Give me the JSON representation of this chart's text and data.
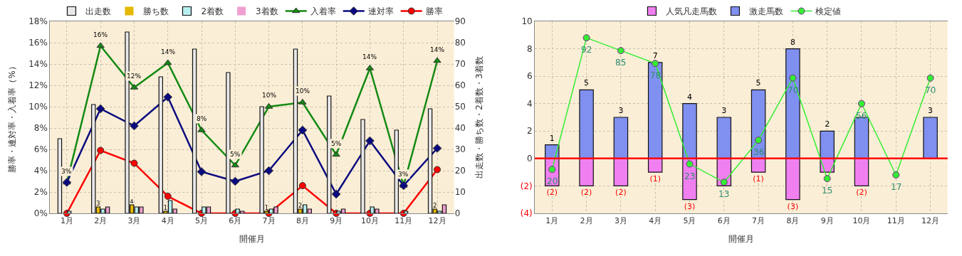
{
  "chart_data": [
    {
      "type": "bar",
      "xlabel": "開催月",
      "ylabel": "勝率・連対率・入着率（%）",
      "y2label": "出走数・勝ち数・2着数・3着数",
      "categories": [
        "1月",
        "2月",
        "3月",
        "4月",
        "5月",
        "6月",
        "7月",
        "8月",
        "9月",
        "10月",
        "11月",
        "12月"
      ],
      "series": [
        {
          "name": "出走数",
          "axis": "y2",
          "color": "#e8e8e8",
          "values": [
            35,
            51,
            85,
            64,
            77,
            66,
            50,
            77,
            55,
            44,
            39,
            49
          ]
        },
        {
          "name": "勝ち数",
          "axis": "y2",
          "color": "#e6b800",
          "values": [
            0,
            3,
            4,
            1,
            0,
            0,
            1,
            2,
            0,
            0,
            0,
            2
          ],
          "value_labels": [
            null,
            "3",
            "4",
            "1",
            null,
            null,
            "1",
            "2",
            null,
            null,
            null,
            "2"
          ]
        },
        {
          "name": "2着数",
          "axis": "y2",
          "color": "#b8f0f0",
          "values": [
            1,
            2,
            3,
            6,
            3,
            2,
            2,
            4,
            1,
            3,
            1,
            1
          ]
        },
        {
          "name": "3着数",
          "axis": "y2",
          "color": "#f0a0d0",
          "values": [
            0,
            3,
            3,
            2,
            3,
            1,
            3,
            2,
            2,
            2,
            0,
            4
          ]
        },
        {
          "name": "入着率",
          "type": "line",
          "axis": "y",
          "color": "#138a13",
          "marker": "triangle",
          "values": [
            2.9,
            15.7,
            11.8,
            14.1,
            7.8,
            4.5,
            10.0,
            10.4,
            5.5,
            13.6,
            2.6,
            14.3
          ],
          "value_labels": [
            "3%",
            "16%",
            "12%",
            "14%",
            "8%",
            "5%",
            "10%",
            "10%",
            "5%",
            "14%",
            "3%",
            "14%"
          ]
        },
        {
          "name": "連対率",
          "type": "line",
          "axis": "y",
          "color": "#0a0a80",
          "marker": "diamond",
          "values": [
            2.9,
            9.8,
            8.2,
            10.9,
            3.9,
            3.0,
            4.0,
            7.8,
            1.8,
            6.8,
            2.6,
            6.1
          ]
        },
        {
          "name": "勝率",
          "type": "line",
          "axis": "y",
          "color": "#ff0000",
          "marker": "circle",
          "values": [
            0,
            5.9,
            4.7,
            1.6,
            0,
            0,
            0,
            2.6,
            0,
            0,
            0,
            4.1
          ]
        }
      ],
      "ylim": [
        0,
        18
      ],
      "yticks": [
        {
          "value": 0,
          "label": "0%"
        },
        {
          "value": 2,
          "label": "2%"
        },
        {
          "value": 4,
          "label": "4%"
        },
        {
          "value": 6,
          "label": "6%"
        },
        {
          "value": 8,
          "label": "8%"
        },
        {
          "value": 10,
          "label": "10%"
        },
        {
          "value": 12,
          "label": "12%"
        },
        {
          "value": 14,
          "label": "14%"
        },
        {
          "value": 16,
          "label": "16%"
        },
        {
          "value": 18,
          "label": "18%"
        }
      ],
      "y2lim": [
        0,
        90
      ],
      "y2ticks": [
        0,
        10,
        20,
        30,
        40,
        50,
        60,
        70,
        80,
        90
      ],
      "grid": true,
      "legend": "top"
    },
    {
      "type": "bar",
      "stacked": true,
      "xlabel": "開催月",
      "categories": [
        "1月",
        "2月",
        "3月",
        "4月",
        "5月",
        "6月",
        "7月",
        "8月",
        "9月",
        "10月",
        "11月",
        "12月"
      ],
      "series": [
        {
          "name": "人気凡走馬数",
          "color": "#f080f0",
          "values": [
            -2,
            -2,
            -2,
            -1,
            -3,
            -2,
            -1,
            -3,
            -1,
            -2,
            0,
            0
          ],
          "value_labels": [
            "(2)",
            "(2)",
            "(2)",
            "(1)",
            "(3)",
            null,
            "(1)",
            "(3)",
            null,
            "(2)",
            null,
            null
          ]
        },
        {
          "name": "激走馬数",
          "color": "#8090f0",
          "values": [
            1,
            5,
            3,
            7,
            4,
            3,
            5,
            8,
            2,
            3,
            0,
            3
          ],
          "value_labels": [
            "1",
            "5",
            "3",
            "7",
            "4",
            "3",
            "5",
            "8",
            "2",
            null,
            null,
            "3"
          ]
        },
        {
          "name": "検定値",
          "type": "line",
          "axis": "y2",
          "color": "#33ee33",
          "marker": "circle",
          "values": [
            20,
            92,
            85,
            78,
            23,
            13,
            36,
            70,
            15,
            56,
            17,
            70
          ],
          "value_labels": [
            "20",
            "92",
            "85",
            "78",
            "23",
            "13",
            "36",
            "70",
            "15",
            "56",
            "17",
            "70"
          ]
        }
      ],
      "ylim": [
        -4,
        10
      ],
      "yticks": [
        {
          "value": -4,
          "label": "(4)"
        },
        {
          "value": -2,
          "label": "(2)"
        },
        0,
        2,
        4,
        6,
        8,
        10
      ],
      "y2lim": [
        -4,
        101
      ],
      "tick_labels": "xy",
      "ref_lines": [
        {
          "axis": "y",
          "value": 0,
          "color": "#ff0000"
        }
      ],
      "grid": true,
      "legend": "top"
    }
  ]
}
